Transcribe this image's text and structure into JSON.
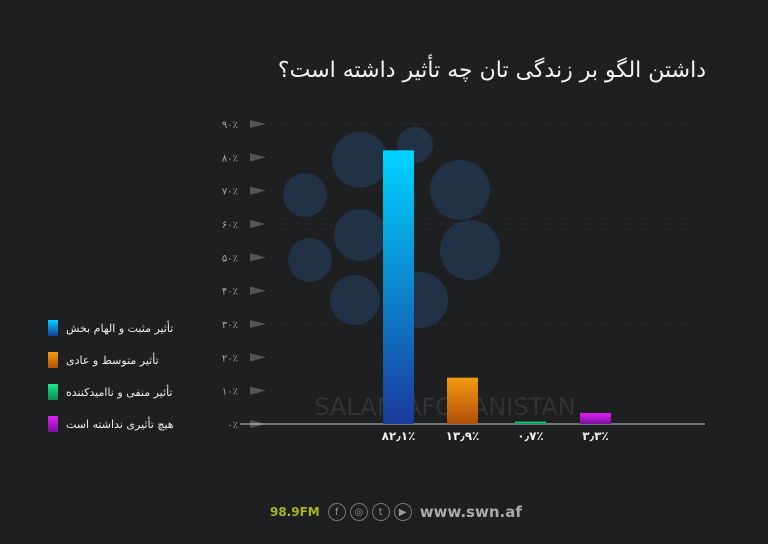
{
  "chart_data": {
    "type": "bar",
    "title": "داشتن الگو بر زندگی تان چه تأثیر داشته است؟",
    "categories": [
      "تأثیر مثبت و الهام بخش",
      "تأثیر متوسط و عادی",
      "تأثیر منفی و ناامیدکننده",
      "هیچ تأثیری نداشته است"
    ],
    "values": [
      82.1,
      13.9,
      0.7,
      3.3
    ],
    "data_labels": [
      "۸۲٫۱٪",
      "۱۳٫۹٪",
      "۰٫۷٪",
      "۳٫۳٪"
    ],
    "colors": [
      [
        "#00d4ff",
        "#1a3a9a"
      ],
      [
        "#f39a10",
        "#b0500a"
      ],
      [
        "#1de98b",
        "#0a8a50"
      ],
      [
        "#e020f0",
        "#7a10a0"
      ]
    ],
    "ylim": [
      0,
      90
    ],
    "yticks": [
      "۰٪",
      "۱۰٪",
      "۲۰٪",
      "۳۰٪",
      "۴۰٪",
      "۵۰٪",
      "۶۰٪",
      "۷۰٪",
      "۸۰٪",
      "۹۰٪"
    ],
    "grid": true,
    "legend": "left"
  },
  "watermark": "SALAM AFGHANISTAN",
  "footer": {
    "station": "98.9FM",
    "url": "www.swn.af",
    "icons": [
      "facebook-icon",
      "instagram-icon",
      "twitter-icon",
      "youtube-icon"
    ]
  }
}
